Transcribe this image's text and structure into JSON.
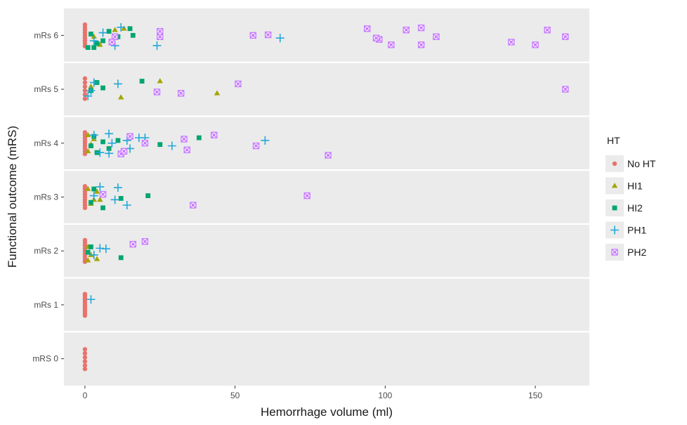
{
  "chart_data": {
    "type": "scatter",
    "title": "",
    "xlabel": "Hemorrhage volume (ml)",
    "ylabel": "Functional outcome (mRS)",
    "xlim": [
      -7,
      168
    ],
    "xticks": [
      0,
      50,
      100,
      150
    ],
    "xtick_labels": [
      "0",
      "50",
      "100",
      "150"
    ],
    "categories": [
      "mRS 0",
      "mRs 1",
      "mRs 2",
      "mRs 3",
      "mRs 4",
      "mRs 5",
      "mRs 6"
    ],
    "grid": true,
    "legend_title": "HT",
    "legend_position": "right",
    "series": [
      {
        "name": "No HT",
        "color": "#E8736C",
        "shape": "circle",
        "points": [
          [
            "mRS 0",
            0,
            -0.35
          ],
          [
            "mRS 0",
            0,
            -0.2
          ],
          [
            "mRS 0",
            0,
            -0.05
          ],
          [
            "mRS 0",
            0,
            0.1
          ],
          [
            "mRS 0",
            0,
            0.25
          ],
          [
            "mRS 0",
            0,
            0.38
          ],
          [
            "mRs 1",
            0,
            -0.4
          ],
          [
            "mRs 1",
            0,
            -0.32
          ],
          [
            "mRs 1",
            0,
            -0.24
          ],
          [
            "mRs 1",
            0,
            -0.16
          ],
          [
            "mRs 1",
            0,
            -0.08
          ],
          [
            "mRs 1",
            0,
            0
          ],
          [
            "mRs 1",
            0,
            0.08
          ],
          [
            "mRs 1",
            0,
            0.16
          ],
          [
            "mRs 1",
            0,
            0.24
          ],
          [
            "mRs 1",
            0,
            0.32
          ],
          [
            "mRs 1",
            0,
            0.4
          ],
          [
            "mRs 2",
            0,
            -0.4
          ],
          [
            "mRs 2",
            0,
            -0.3
          ],
          [
            "mRs 2",
            0,
            -0.2
          ],
          [
            "mRs 2",
            0,
            -0.1
          ],
          [
            "mRs 2",
            0,
            0
          ],
          [
            "mRs 2",
            0,
            0.1
          ],
          [
            "mRs 2",
            0,
            0.2
          ],
          [
            "mRs 2",
            0,
            0.3
          ],
          [
            "mRs 2",
            0,
            0.4
          ],
          [
            "mRs 3",
            0,
            -0.4
          ],
          [
            "mRs 3",
            0,
            -0.3
          ],
          [
            "mRs 3",
            0,
            -0.2
          ],
          [
            "mRs 3",
            0,
            -0.1
          ],
          [
            "mRs 3",
            0,
            0
          ],
          [
            "mRs 3",
            0,
            0.1
          ],
          [
            "mRs 3",
            0,
            0.2
          ],
          [
            "mRs 3",
            0,
            0.3
          ],
          [
            "mRs 3",
            0,
            0.4
          ],
          [
            "mRs 4",
            0,
            -0.4
          ],
          [
            "mRs 4",
            0,
            -0.3
          ],
          [
            "mRs 4",
            0,
            -0.2
          ],
          [
            "mRs 4",
            0,
            -0.1
          ],
          [
            "mRs 4",
            0,
            0
          ],
          [
            "mRs 4",
            0,
            0.1
          ],
          [
            "mRs 4",
            0,
            0.2
          ],
          [
            "mRs 4",
            0,
            0.3
          ],
          [
            "mRs 4",
            0,
            0.4
          ],
          [
            "mRs 5",
            0,
            -0.4
          ],
          [
            "mRs 5",
            0,
            -0.25
          ],
          [
            "mRs 5",
            0,
            -0.1
          ],
          [
            "mRs 5",
            0,
            0.05
          ],
          [
            "mRs 5",
            0,
            0.2
          ],
          [
            "mRs 5",
            0,
            0.35
          ],
          [
            "mRs 6",
            0,
            -0.4
          ],
          [
            "mRs 6",
            0,
            -0.3
          ],
          [
            "mRs 6",
            0,
            -0.2
          ],
          [
            "mRs 6",
            0,
            -0.1
          ],
          [
            "mRs 6",
            0,
            0
          ],
          [
            "mRs 6",
            0,
            0.1
          ],
          [
            "mRs 6",
            0,
            0.2
          ],
          [
            "mRs 6",
            0,
            0.3
          ],
          [
            "mRs 6",
            0,
            0.4
          ]
        ]
      },
      {
        "name": "HI1",
        "color": "#A3A500",
        "shape": "triangle",
        "points": [
          [
            "mRs 2",
            1,
            0.35
          ],
          [
            "mRs 2",
            2,
            0.15
          ],
          [
            "mRs 2",
            4,
            0.3
          ],
          [
            "mRs 2",
            1,
            -0.15
          ],
          [
            "mRs 3",
            2,
            0.25
          ],
          [
            "mRs 3",
            3,
            0.1
          ],
          [
            "mRs 3",
            4,
            -0.2
          ],
          [
            "mRs 3",
            1,
            -0.3
          ],
          [
            "mRs 3",
            5,
            0.1
          ],
          [
            "mRs 4",
            1,
            0.3
          ],
          [
            "mRs 4",
            2,
            0.05
          ],
          [
            "mRs 4",
            3,
            -0.15
          ],
          [
            "mRs 4",
            1,
            -0.3
          ],
          [
            "mRs 5",
            12,
            0.3
          ],
          [
            "mRs 5",
            44,
            0.15
          ],
          [
            "mRs 5",
            25,
            -0.3
          ],
          [
            "mRs 5",
            2,
            -0.1
          ],
          [
            "mRs 6",
            5,
            0.35
          ],
          [
            "mRs 6",
            10,
            -0.2
          ],
          [
            "mRs 6",
            13,
            -0.25
          ],
          [
            "mRs 6",
            3,
            0.05
          ]
        ]
      },
      {
        "name": "HI2",
        "color": "#00A56F",
        "shape": "square",
        "points": [
          [
            "mRs 2",
            12,
            0.25
          ],
          [
            "mRs 2",
            1,
            0.05
          ],
          [
            "mRs 2",
            2,
            -0.15
          ],
          [
            "mRs 3",
            21,
            -0.05
          ],
          [
            "mRs 3",
            6,
            0.4
          ],
          [
            "mRs 3",
            12,
            0.05
          ],
          [
            "mRs 3",
            3,
            -0.3
          ],
          [
            "mRs 3",
            2,
            0.2
          ],
          [
            "mRs 4",
            4,
            0.35
          ],
          [
            "mRs 4",
            8,
            0.2
          ],
          [
            "mRs 4",
            25,
            0.05
          ],
          [
            "mRs 4",
            38,
            -0.2
          ],
          [
            "mRs 4",
            6,
            -0.05
          ],
          [
            "mRs 4",
            3,
            -0.25
          ],
          [
            "mRs 4",
            2,
            0.1
          ],
          [
            "mRs 4",
            11,
            -0.1
          ],
          [
            "mRs 5",
            19,
            -0.3
          ],
          [
            "mRs 5",
            6,
            -0.05
          ],
          [
            "mRs 5",
            4,
            -0.25
          ],
          [
            "mRs 5",
            2,
            0.05
          ],
          [
            "mRs 6",
            1,
            0.45
          ],
          [
            "mRs 6",
            3,
            0.45
          ],
          [
            "mRs 6",
            6,
            0.2
          ],
          [
            "mRs 6",
            16,
            0
          ],
          [
            "mRs 6",
            15,
            -0.25
          ],
          [
            "mRs 6",
            11,
            0.05
          ],
          [
            "mRs 6",
            8,
            -0.15
          ],
          [
            "mRs 6",
            2,
            -0.05
          ],
          [
            "mRs 6",
            4,
            0.3
          ]
        ]
      },
      {
        "name": "PH1",
        "color": "#22A8D8",
        "shape": "plus",
        "points": [
          [
            "mRs 1",
            2,
            -0.2
          ],
          [
            "mRs 2",
            5,
            -0.1
          ],
          [
            "mRs 2",
            7,
            -0.08
          ],
          [
            "mRs 2",
            3,
            0.15
          ],
          [
            "mRs 3",
            14,
            0.3
          ],
          [
            "mRs 3",
            11,
            -0.35
          ],
          [
            "mRs 3",
            5,
            -0.38
          ],
          [
            "mRs 3",
            10,
            0.1
          ],
          [
            "mRs 3",
            3,
            -0.05
          ],
          [
            "mRs 4",
            5,
            0.35
          ],
          [
            "mRs 4",
            8,
            0.38
          ],
          [
            "mRs 4",
            15,
            0.2
          ],
          [
            "mRs 4",
            9,
            0
          ],
          [
            "mRs 4",
            14,
            -0.1
          ],
          [
            "mRs 4",
            29,
            0.1
          ],
          [
            "mRs 4",
            60,
            -0.1
          ],
          [
            "mRs 4",
            18,
            -0.2
          ],
          [
            "mRs 4",
            20,
            -0.2
          ],
          [
            "mRs 4",
            8,
            -0.35
          ],
          [
            "mRs 4",
            3,
            -0.3
          ],
          [
            "mRs 5",
            11,
            -0.2
          ],
          [
            "mRs 5",
            3,
            -0.25
          ],
          [
            "mRs 5",
            1,
            0.25
          ],
          [
            "mRs 5",
            2,
            0.05
          ],
          [
            "mRs 6",
            24,
            0.38
          ],
          [
            "mRs 6",
            10,
            0.38
          ],
          [
            "mRs 6",
            65,
            0.1
          ],
          [
            "mRs 6",
            12,
            -0.3
          ],
          [
            "mRs 6",
            6,
            -0.1
          ],
          [
            "mRs 6",
            3,
            0.2
          ]
        ]
      },
      {
        "name": "PH2",
        "color": "#C77CFF",
        "shape": "square-cross",
        "points": [
          [
            "mRs 2",
            16,
            -0.25
          ],
          [
            "mRs 2",
            20,
            -0.35
          ],
          [
            "mRs 3",
            36,
            0.3
          ],
          [
            "mRs 3",
            74,
            -0.05
          ],
          [
            "mRs 3",
            6,
            -0.1
          ],
          [
            "mRs 4",
            81,
            0.45
          ],
          [
            "mRs 4",
            12,
            0.4
          ],
          [
            "mRs 4",
            34,
            0.25
          ],
          [
            "mRs 4",
            57,
            0.1
          ],
          [
            "mRs 4",
            13,
            0.3
          ],
          [
            "mRs 4",
            20,
            0
          ],
          [
            "mRs 4",
            33,
            -0.15
          ],
          [
            "mRs 4",
            43,
            -0.3
          ],
          [
            "mRs 4",
            15,
            -0.25
          ],
          [
            "mRs 5",
            24,
            0.1
          ],
          [
            "mRs 5",
            32,
            0.15
          ],
          [
            "mRs 5",
            51,
            -0.2
          ],
          [
            "mRs 5",
            160,
            0
          ],
          [
            "mRs 6",
            102,
            0.35
          ],
          [
            "mRs 6",
            112,
            0.35
          ],
          [
            "mRs 6",
            150,
            0.35
          ],
          [
            "mRs 6",
            142,
            0.25
          ],
          [
            "mRs 6",
            98,
            0.15
          ],
          [
            "mRs 6",
            97,
            0.1
          ],
          [
            "mRs 6",
            117,
            0.05
          ],
          [
            "mRs 6",
            160,
            0.05
          ],
          [
            "mRs 6",
            56,
            0
          ],
          [
            "mRs 6",
            61,
            -0.02
          ],
          [
            "mRs 6",
            25,
            0.05
          ],
          [
            "mRs 6",
            25,
            -0.15
          ],
          [
            "mRs 6",
            107,
            -0.2
          ],
          [
            "mRs 6",
            112,
            -0.28
          ],
          [
            "mRs 6",
            154,
            -0.2
          ],
          [
            "mRs 6",
            94,
            -0.25
          ],
          [
            "mRs 6",
            10,
            0.05
          ],
          [
            "mRs 6",
            9,
            0.25
          ]
        ]
      }
    ]
  }
}
